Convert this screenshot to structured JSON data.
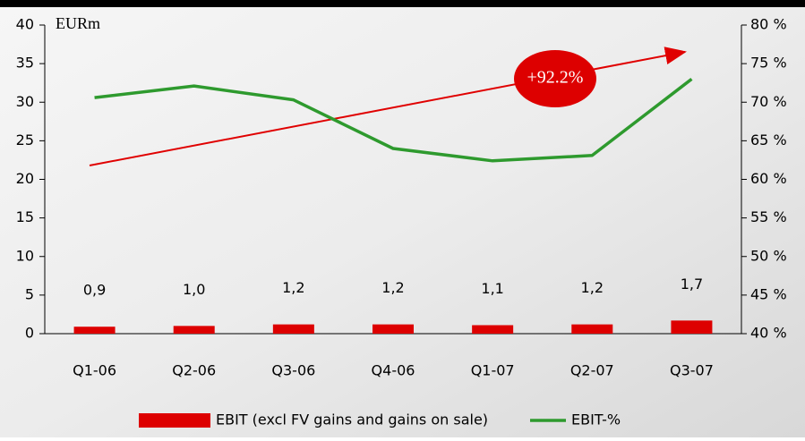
{
  "chart_data": {
    "type": "bar",
    "y_label": "EURm",
    "categories": [
      "Q1-06",
      "Q2-06",
      "Q3-06",
      "Q4-06",
      "Q1-07",
      "Q2-07",
      "Q3-07"
    ],
    "series": [
      {
        "name": "EBIT (excl FV gains and gains on sale)",
        "type": "bar",
        "color": "#dd0000",
        "values": [
          0.9,
          1.0,
          1.2,
          1.2,
          1.1,
          1.2,
          1.7
        ],
        "value_labels": [
          "0,9",
          "1,0",
          "1,2",
          "1,2",
          "1,1",
          "1,2",
          "1,7"
        ]
      },
      {
        "name": "EBIT-%",
        "type": "line",
        "color": "#2e9a2e",
        "axis": "y2",
        "values": [
          70.6,
          72.1,
          70.3,
          64.0,
          62.4,
          63.1,
          73.0
        ]
      }
    ],
    "annotation": "+92.2%",
    "ylim": [
      0,
      40
    ],
    "yticks": [
      0,
      5,
      10,
      15,
      20,
      25,
      30,
      35,
      40
    ],
    "y2lim": [
      40,
      80
    ],
    "y2ticks": [
      {
        "value": 40,
        "label": "40 %"
      },
      {
        "value": 45,
        "label": "45 %"
      },
      {
        "value": 50,
        "label": "50 %"
      },
      {
        "value": 55,
        "label": "55 %"
      },
      {
        "value": 60,
        "label": "60 %"
      },
      {
        "value": 65,
        "label": "65 %"
      },
      {
        "value": 70,
        "label": "70 %"
      },
      {
        "value": 75,
        "label": "75 %"
      },
      {
        "value": 80,
        "label": "80 %"
      }
    ]
  }
}
